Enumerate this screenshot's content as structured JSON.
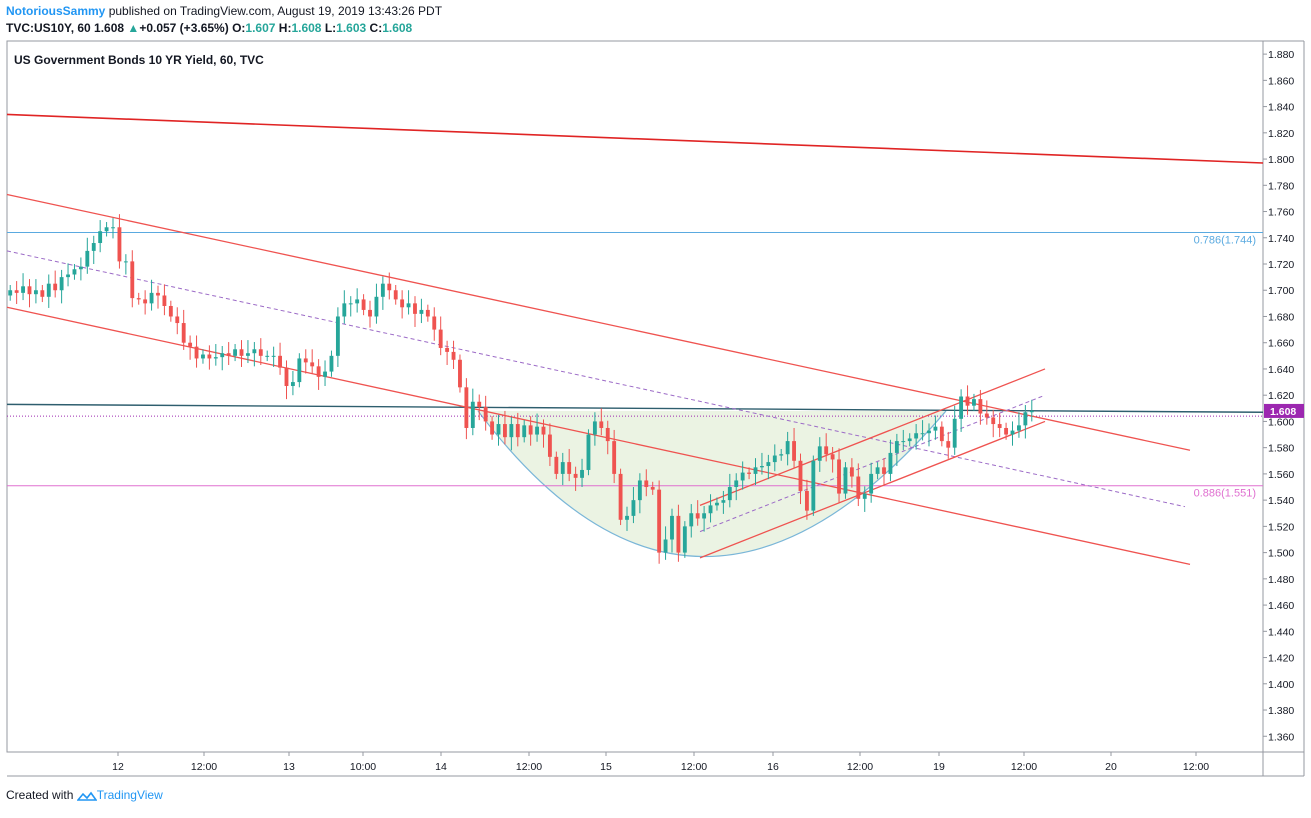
{
  "header": {
    "author": "NotoriousSammy",
    "published_text": " published on TradingView.com, August 19, 2019 13:43:26 PDT",
    "symbol": "TVC:US10Y, 60",
    "last": "1.608",
    "change": "+0.057 (+3.65%)",
    "o_label": "O:",
    "o": "1.607",
    "h_label": "H:",
    "h": "1.608",
    "l_label": "L:",
    "l": "1.603",
    "c_label": "C:",
    "c": "1.608"
  },
  "footer": {
    "created_with": "Created with",
    "brand": "TradingView"
  },
  "colors": {
    "up": "#26a69a",
    "down": "#ef5350",
    "trendline": "#ef5350",
    "red_line": "#e02424",
    "fib_786": "#5aaae0",
    "fib_886": "#e070d0",
    "horizontal": "#2e5e6e",
    "price_badge": "#9c27b0",
    "bowl_fill": "#e6f0dc",
    "bowl_stroke": "#7ab6d8",
    "midline": "#9c6bc7",
    "grid": "#e0e3eb"
  },
  "chart_data": {
    "type": "candlestick",
    "title": "US Government Bonds 10 YR Yield, 60, TVC",
    "x_ticks": [
      "12",
      "12:00",
      "13",
      "10:00",
      "14",
      "12:00",
      "15",
      "12:00",
      "16",
      "12:00",
      "19",
      "12:00",
      "20",
      "12:00"
    ],
    "y_ticks": [
      "1.880",
      "1.860",
      "1.840",
      "1.820",
      "1.800",
      "1.780",
      "1.760",
      "1.740",
      "1.720",
      "1.700",
      "1.680",
      "1.660",
      "1.640",
      "1.620",
      "1.600",
      "1.580",
      "1.560",
      "1.540",
      "1.520",
      "1.500",
      "1.480",
      "1.460",
      "1.440",
      "1.420",
      "1.400",
      "1.380",
      "1.360"
    ],
    "ylim": [
      1.348,
      1.89
    ],
    "n_slots": 210,
    "last_price": "1.608",
    "fib_levels": [
      {
        "label": "0.786(1.744)",
        "value": 1.744
      },
      {
        "label": "0.886(1.551)",
        "value": 1.551
      }
    ],
    "horizontal_value": 1.608,
    "close_dotted": 1.604,
    "candles_close": [
      1.7,
      1.698,
      1.703,
      1.697,
      1.7,
      1.695,
      1.705,
      1.7,
      1.71,
      1.712,
      1.716,
      1.718,
      1.73,
      1.736,
      1.745,
      1.748,
      1.748,
      1.722,
      1.722,
      1.694,
      1.693,
      1.69,
      1.698,
      1.696,
      1.688,
      1.68,
      1.675,
      1.66,
      1.657,
      1.648,
      1.651,
      1.648,
      1.649,
      1.652,
      1.65,
      1.655,
      1.65,
      1.652,
      1.655,
      1.65,
      1.65,
      1.65,
      1.641,
      1.627,
      1.63,
      1.648,
      1.645,
      1.642,
      1.634,
      1.638,
      1.65,
      1.68,
      1.69,
      1.69,
      1.693,
      1.685,
      1.68,
      1.695,
      1.705,
      1.7,
      1.693,
      1.687,
      1.69,
      1.682,
      1.685,
      1.68,
      1.67,
      1.656,
      1.653,
      1.647,
      1.626,
      1.595,
      1.615,
      1.611,
      1.6,
      1.59,
      1.598,
      1.588,
      1.598,
      1.588,
      1.597,
      1.59,
      1.596,
      1.59,
      1.573,
      1.56,
      1.569,
      1.56,
      1.557,
      1.563,
      1.59,
      1.6,
      1.595,
      1.585,
      1.56,
      1.525,
      1.528,
      1.54,
      1.555,
      1.55,
      1.548,
      1.5,
      1.51,
      1.528,
      1.5,
      1.52,
      1.53,
      1.526,
      1.53,
      1.536,
      1.538,
      1.54,
      1.55,
      1.555,
      1.561,
      1.56,
      1.565,
      1.566,
      1.569,
      1.574,
      1.575,
      1.585,
      1.57,
      1.547,
      1.532,
      1.57,
      1.581,
      1.575,
      1.571,
      1.545,
      1.565,
      1.558,
      1.541,
      1.545,
      1.56,
      1.565,
      1.56,
      1.576,
      1.585,
      1.585,
      1.587,
      1.591,
      1.591,
      1.593,
      1.596,
      1.585,
      1.58,
      1.602,
      1.619,
      1.612,
      1.617,
      1.606,
      1.603,
      1.598,
      1.595,
      1.59,
      1.593,
      1.597,
      1.607,
      1.608
    ],
    "candles": "generated from closes"
  }
}
